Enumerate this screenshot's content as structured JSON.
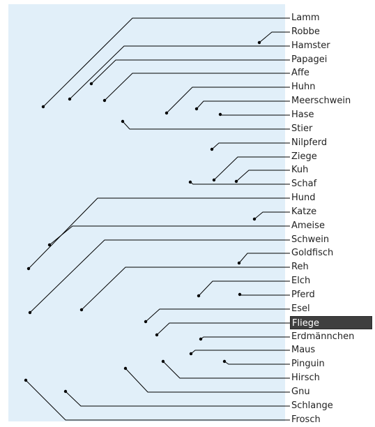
{
  "labels": [
    {
      "text": "Lamm",
      "selected": false
    },
    {
      "text": "Robbe",
      "selected": false
    },
    {
      "text": "Hamster",
      "selected": false
    },
    {
      "text": "Papagei",
      "selected": false
    },
    {
      "text": "Affe",
      "selected": false
    },
    {
      "text": "Huhn",
      "selected": false
    },
    {
      "text": "Meerschwein",
      "selected": false
    },
    {
      "text": "Hase",
      "selected": false
    },
    {
      "text": "Stier",
      "selected": false
    },
    {
      "text": "Nilpferd",
      "selected": false
    },
    {
      "text": "Ziege",
      "selected": false
    },
    {
      "text": "Kuh",
      "selected": false
    },
    {
      "text": "Schaf",
      "selected": false
    },
    {
      "text": "Hund",
      "selected": false
    },
    {
      "text": "Katze",
      "selected": false
    },
    {
      "text": "Ameise",
      "selected": false
    },
    {
      "text": "Schwein",
      "selected": false
    },
    {
      "text": "Goldfisch",
      "selected": false
    },
    {
      "text": "Reh",
      "selected": false
    },
    {
      "text": "Elch",
      "selected": false
    },
    {
      "text": "Pferd",
      "selected": false
    },
    {
      "text": "Esel",
      "selected": false
    },
    {
      "text": "Fliege",
      "selected": true
    },
    {
      "text": "Erdmännchen",
      "selected": false
    },
    {
      "text": "Maus",
      "selected": false
    },
    {
      "text": "Pinguin",
      "selected": false
    },
    {
      "text": "Hirsch",
      "selected": false
    },
    {
      "text": "Gnu",
      "selected": false
    },
    {
      "text": "Schlange",
      "selected": false
    },
    {
      "text": "Frosch",
      "selected": false
    }
  ],
  "colors": {
    "panel": "#e1eff9",
    "line": "#000000",
    "selected_bg": "#3f3f3f",
    "selected_text": "#ffffff"
  }
}
